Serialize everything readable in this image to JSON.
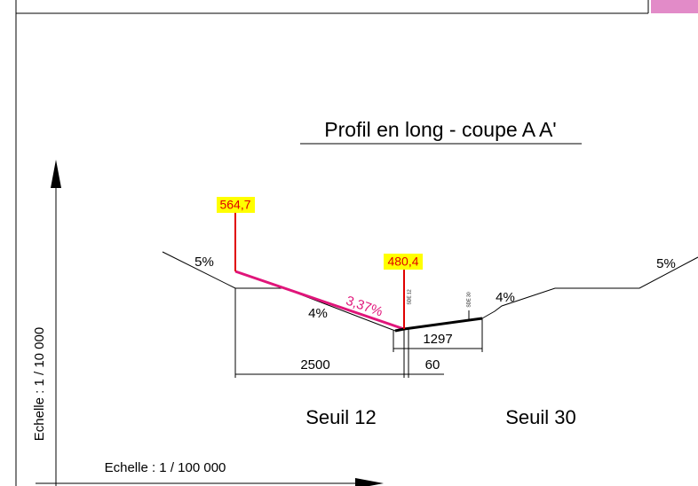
{
  "title": "Profil en long - coupe A A'",
  "levels": [
    "564,7",
    "480,4"
  ],
  "slopes": {
    "left": "5%",
    "right": "5%",
    "left_bottom": "4%",
    "right_bottom": "4%",
    "main": "3,37%"
  },
  "markers": [
    "SDE 12",
    "SDE 30"
  ],
  "dimensions": [
    "2500",
    "60",
    "1297"
  ],
  "sills": [
    "Seuil 12",
    "Seuil 30"
  ],
  "scales": {
    "vertical": "Echelle : 1 / 10 000",
    "horizontal": "Echelle : 1 / 100 000"
  }
}
